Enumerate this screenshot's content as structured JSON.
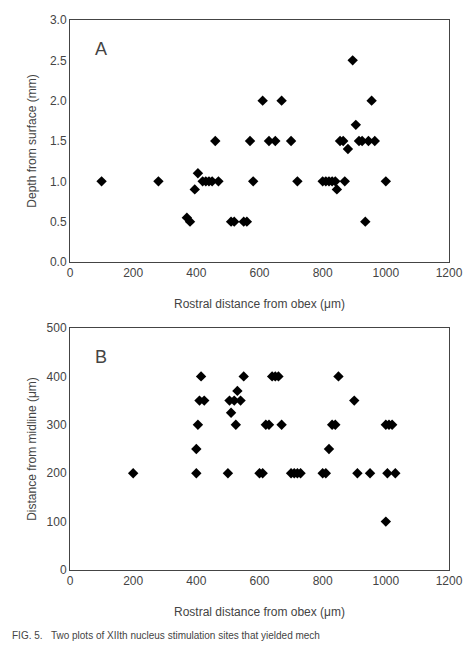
{
  "chart_data": [
    {
      "type": "scatter",
      "annotations": [
        "A"
      ],
      "xlabel": "Rostral distance from obex (μm)",
      "ylabel": "Depth from surface (mm)",
      "xlim": [
        0,
        1200
      ],
      "ylim": [
        0,
        3
      ],
      "xticks": [
        0,
        200,
        400,
        600,
        800,
        1000,
        1200
      ],
      "yticks": [
        {
          "value": 0,
          "label": "0.0"
        },
        0.5,
        {
          "value": 1.0,
          "label": "1.0"
        },
        1.5,
        {
          "value": 2.0,
          "label": "2.0"
        },
        2.5,
        {
          "value": 3.0,
          "label": "3.0"
        }
      ],
      "x": [
        100,
        280,
        370,
        380,
        395,
        405,
        420,
        430,
        440,
        450,
        460,
        470,
        510,
        520,
        550,
        560,
        570,
        580,
        610,
        630,
        650,
        670,
        700,
        720,
        800,
        810,
        820,
        830,
        840,
        845,
        855,
        865,
        870,
        880,
        895,
        905,
        915,
        925,
        935,
        945,
        955,
        965,
        1000
      ],
      "values": [
        1.0,
        1.0,
        0.55,
        0.5,
        0.9,
        1.1,
        1.0,
        1.0,
        1.0,
        1.0,
        1.5,
        1.0,
        0.5,
        0.5,
        0.5,
        0.5,
        1.5,
        1.0,
        2.0,
        1.5,
        1.5,
        2.0,
        1.5,
        1.0,
        1.0,
        1.0,
        1.0,
        1.0,
        1.0,
        0.9,
        1.5,
        1.5,
        1.0,
        1.4,
        2.5,
        1.7,
        1.5,
        1.5,
        0.5,
        1.5,
        2.0,
        1.5,
        1.0
      ],
      "marker": "diamond",
      "color": "black",
      "grid": false
    },
    {
      "type": "scatter",
      "annotations": [
        "B",
        "FIG. 5.   Two plots of XIIth nucleus stimulation sites that yielded mech"
      ],
      "xlabel": "Rostral distance from obex (μm)",
      "ylabel": "Distance from midline (μm)",
      "xlim": [
        0,
        1200
      ],
      "ylim": [
        0,
        500
      ],
      "xticks": [
        0,
        200,
        400,
        600,
        800,
        1000,
        1200
      ],
      "yticks": [
        0,
        100,
        200,
        300,
        400,
        500
      ],
      "x": [
        200,
        400,
        400,
        405,
        410,
        415,
        425,
        500,
        505,
        510,
        520,
        525,
        530,
        540,
        550,
        600,
        610,
        620,
        630,
        640,
        650,
        660,
        670,
        700,
        710,
        720,
        730,
        800,
        810,
        820,
        830,
        840,
        850,
        900,
        910,
        950,
        1000,
        1005,
        1010,
        1020,
        1030,
        1000
      ],
      "values": [
        200,
        200,
        250,
        300,
        350,
        400,
        350,
        200,
        350,
        325,
        350,
        300,
        370,
        350,
        400,
        200,
        200,
        300,
        300,
        400,
        400,
        400,
        300,
        200,
        200,
        200,
        200,
        200,
        200,
        250,
        300,
        300,
        400,
        350,
        200,
        200,
        100,
        200,
        300,
        300,
        200,
        300
      ],
      "marker": "diamond",
      "color": "black",
      "grid": false
    }
  ]
}
